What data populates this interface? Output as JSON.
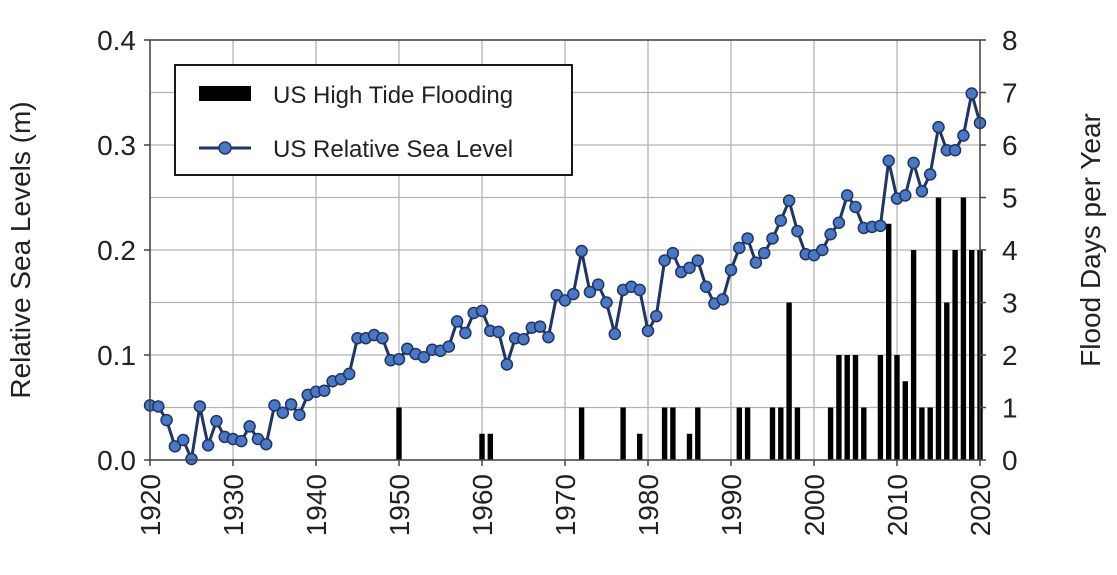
{
  "chart_data": {
    "type": "bar+line",
    "ylabel_left": "Relative Sea Levels (m)",
    "ylabel_right": "Flood Days per Year",
    "xlim": [
      1920,
      2020
    ],
    "ylim_left": [
      0,
      0.4
    ],
    "ylim_right": [
      0,
      8
    ],
    "x_ticks": [
      "1920",
      "1930",
      "1940",
      "1950",
      "1960",
      "1970",
      "1980",
      "1990",
      "2000",
      "2010",
      "2020"
    ],
    "y_left_ticks": [
      "0.0",
      "0.1",
      "0.2",
      "0.3",
      "0.4"
    ],
    "y_right_ticks": [
      "0",
      "1",
      "2",
      "3",
      "4",
      "5",
      "6",
      "7",
      "8"
    ],
    "grid": true,
    "legend_position": "top-left",
    "colors": {
      "bars": "#000000",
      "line": "#1f3566",
      "marker_fill": "#4a78c4",
      "grid": "#b3b3b3"
    },
    "series": [
      {
        "name": "US High Tide Flooding",
        "type": "bar",
        "axis": "right",
        "years": [
          1950,
          1960,
          1961,
          1972,
          1977,
          1979,
          1982,
          1983,
          1985,
          1986,
          1991,
          1992,
          1995,
          1996,
          1997,
          1998,
          2002,
          2003,
          2004,
          2005,
          2006,
          2008,
          2009,
          2010,
          2011,
          2012,
          2013,
          2014,
          2015,
          2016,
          2017,
          2018,
          2019,
          2020
        ],
        "values": [
          1,
          0.5,
          0.5,
          1,
          1,
          0.5,
          1,
          1,
          0.5,
          1,
          1,
          1,
          1,
          1,
          3,
          1,
          1,
          2,
          2,
          2,
          1,
          2,
          4.5,
          2,
          1.5,
          4,
          1,
          1,
          5,
          3,
          4,
          5,
          4,
          4
        ]
      },
      {
        "name": "US Relative Sea Level",
        "type": "line",
        "axis": "left",
        "years": [
          1920,
          1921,
          1922,
          1923,
          1924,
          1925,
          1926,
          1927,
          1928,
          1929,
          1930,
          1931,
          1932,
          1933,
          1934,
          1935,
          1936,
          1937,
          1938,
          1939,
          1940,
          1941,
          1942,
          1943,
          1944,
          1945,
          1946,
          1947,
          1948,
          1949,
          1950,
          1951,
          1952,
          1953,
          1954,
          1955,
          1956,
          1957,
          1958,
          1959,
          1960,
          1961,
          1962,
          1963,
          1964,
          1965,
          1966,
          1967,
          1968,
          1969,
          1970,
          1971,
          1972,
          1973,
          1974,
          1975,
          1976,
          1977,
          1978,
          1979,
          1980,
          1981,
          1982,
          1983,
          1984,
          1985,
          1986,
          1987,
          1988,
          1989,
          1990,
          1991,
          1992,
          1993,
          1994,
          1995,
          1996,
          1997,
          1998,
          1999,
          2000,
          2001,
          2002,
          2003,
          2004,
          2005,
          2006,
          2007,
          2008,
          2009,
          2010,
          2011,
          2012,
          2013,
          2014,
          2015,
          2016,
          2017,
          2018,
          2019,
          2020
        ],
        "values": [
          0.052,
          0.051,
          0.038,
          0.013,
          0.019,
          0.001,
          0.051,
          0.014,
          0.037,
          0.022,
          0.02,
          0.018,
          0.032,
          0.02,
          0.015,
          0.052,
          0.045,
          0.053,
          0.043,
          0.062,
          0.065,
          0.066,
          0.075,
          0.077,
          0.082,
          0.116,
          0.116,
          0.119,
          0.116,
          0.095,
          0.096,
          0.106,
          0.101,
          0.098,
          0.105,
          0.104,
          0.108,
          0.132,
          0.121,
          0.14,
          0.142,
          0.123,
          0.122,
          0.091,
          0.116,
          0.115,
          0.126,
          0.127,
          0.117,
          0.157,
          0.152,
          0.158,
          0.199,
          0.16,
          0.167,
          0.15,
          0.12,
          0.162,
          0.165,
          0.162,
          0.123,
          0.137,
          0.19,
          0.197,
          0.179,
          0.183,
          0.19,
          0.165,
          0.149,
          0.153,
          0.181,
          0.202,
          0.211,
          0.188,
          0.197,
          0.211,
          0.228,
          0.247,
          0.218,
          0.196,
          0.195,
          0.2,
          0.215,
          0.226,
          0.252,
          0.241,
          0.221,
          0.222,
          0.223,
          0.285,
          0.249,
          0.252,
          0.283,
          0.256,
          0.272,
          0.317,
          0.295,
          0.295,
          0.309,
          0.349,
          0.321
        ]
      }
    ]
  }
}
